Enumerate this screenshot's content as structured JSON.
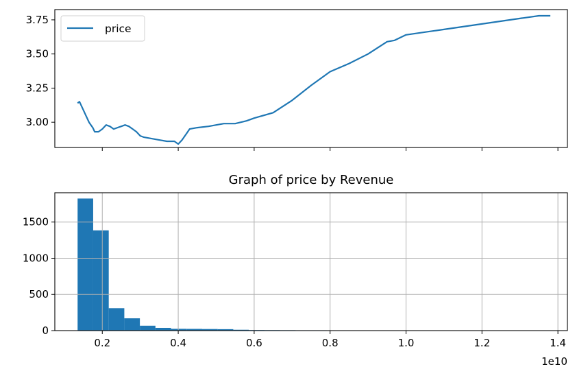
{
  "colors": {
    "series": "#1f77b4",
    "grid": "#b0b0b0",
    "axis": "#000000"
  },
  "chart_data": [
    {
      "type": "line",
      "title": "",
      "xlabel": "",
      "ylabel": "",
      "legend": {
        "placement": "upper-left",
        "entries": [
          "price"
        ]
      },
      "grid": false,
      "xlim": [
        750000000.0,
        14250000000.0
      ],
      "ylim": [
        2.815,
        3.825
      ],
      "yticks": [
        3.0,
        3.25,
        3.5,
        3.75
      ],
      "ytick_labels": [
        "3.00",
        "3.25",
        "3.50",
        "3.75"
      ],
      "xticks": [
        2000000000.0,
        4000000000.0,
        6000000000.0,
        8000000000.0,
        10000000000.0,
        12000000000.0,
        14000000000.0
      ],
      "xtick_labels_shown": false,
      "series": [
        {
          "name": "price",
          "x": [
            1350000000.0,
            1400000000.0,
            1450000000.0,
            1500000000.0,
            1550000000.0,
            1600000000.0,
            1650000000.0,
            1700000000.0,
            1750000000.0,
            1800000000.0,
            1850000000.0,
            1900000000.0,
            1950000000.0,
            2000000000.0,
            2100000000.0,
            2200000000.0,
            2300000000.0,
            2400000000.0,
            2500000000.0,
            2600000000.0,
            2700000000.0,
            2800000000.0,
            2900000000.0,
            3000000000.0,
            3100000000.0,
            3300000000.0,
            3500000000.0,
            3700000000.0,
            3900000000.0,
            4000000000.0,
            4100000000.0,
            4200000000.0,
            4300000000.0,
            4500000000.0,
            4800000000.0,
            5000000000.0,
            5200000000.0,
            5500000000.0,
            5800000000.0,
            6000000000.0,
            6500000000.0,
            7000000000.0,
            7500000000.0,
            8000000000.0,
            8500000000.0,
            9000000000.0,
            9500000000.0,
            9700000000.0,
            10000000000.0,
            10500000000.0,
            11000000000.0,
            11500000000.0,
            12000000000.0,
            12500000000.0,
            13000000000.0,
            13500000000.0,
            13650000000.0,
            13800000000.0
          ],
          "y": [
            3.14,
            3.15,
            3.12,
            3.09,
            3.06,
            3.03,
            3.0,
            2.98,
            2.96,
            2.93,
            2.93,
            2.93,
            2.94,
            2.95,
            2.98,
            2.97,
            2.95,
            2.96,
            2.97,
            2.98,
            2.97,
            2.95,
            2.93,
            2.9,
            2.89,
            2.88,
            2.87,
            2.86,
            2.86,
            2.84,
            2.87,
            2.91,
            2.95,
            2.96,
            2.97,
            2.98,
            2.99,
            2.99,
            3.01,
            3.03,
            3.07,
            3.16,
            3.27,
            3.37,
            3.43,
            3.5,
            3.59,
            3.6,
            3.64,
            3.66,
            3.68,
            3.7,
            3.72,
            3.74,
            3.76,
            3.78,
            3.78,
            3.78
          ]
        }
      ]
    },
    {
      "type": "bar",
      "title": "Graph of price by Revenue",
      "xlabel": "",
      "ylabel": "",
      "grid": true,
      "xlim": [
        750000000.0,
        14250000000.0
      ],
      "ylim": [
        0,
        1905
      ],
      "yticks": [
        0,
        500,
        1000,
        1500
      ],
      "ytick_labels": [
        "0",
        "500",
        "1000",
        "1500"
      ],
      "xticks": [
        2000000000.0,
        4000000000.0,
        6000000000.0,
        8000000000.0,
        10000000000.0,
        12000000000.0,
        14000000000.0
      ],
      "xtick_labels": [
        "0.2",
        "0.4",
        "0.6",
        "0.8",
        "1.0",
        "1.2",
        "1.4"
      ],
      "x_offset_label": "1e10",
      "bin_edges": [
        1350000000.0,
        1760000000.0,
        2170000000.0,
        2580000000.0,
        2990000000.0,
        3400000000.0,
        3810000000.0,
        4220000000.0,
        4630000000.0,
        5040000000.0,
        5450000000.0,
        5860000000.0,
        6270000000.0,
        6680000000.0,
        7090000000.0,
        7500000000.0,
        7910000000.0,
        8320000000.0,
        8730000000.0,
        9140000000.0,
        9550000000.0,
        9960000000.0,
        10370000000.0,
        10780000000.0,
        11190000000.0,
        11600000000.0,
        12010000000.0,
        12420000000.0,
        12830000000.0,
        13240000000.0,
        13650000000.0,
        13800000000.0
      ],
      "counts": [
        1825,
        1385,
        310,
        170,
        68,
        38,
        25,
        24,
        22,
        20,
        12,
        8,
        7,
        6,
        5,
        5,
        4,
        4,
        4,
        3,
        3,
        3,
        3,
        3,
        3,
        2,
        2,
        2,
        2,
        2,
        2
      ]
    }
  ]
}
